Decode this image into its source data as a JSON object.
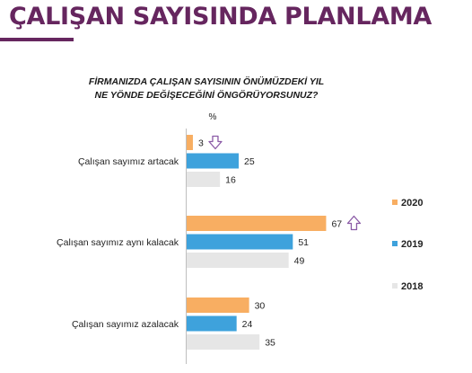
{
  "title": "ÇALIŞAN SAYISINDA PLANLAMA",
  "colors": {
    "title": "#66265f",
    "rule": "#66265f",
    "arrow": "#8a5aa6",
    "2020": "#f8ae62",
    "2019": "#3ea2dc",
    "2018": "#e6e6e6"
  },
  "chart_data": {
    "type": "bar",
    "orientation": "horizontal",
    "title": "FİRMANIZDA ÇALIŞAN SAYISININ ÖNÜMÜZDEKİ YIL NE YÖNDE DEĞİŞECEĞİNİ ÖNGÖRÜYORSUNUZ?",
    "title_lines": [
      "FİRMANIZDA ÇALIŞAN SAYISININ ÖNÜMÜZDEKİ YIL",
      "NE YÖNDE DEĞİŞECEĞİNİ ÖNGÖRÜYORSUNUZ?"
    ],
    "unit_label": "%",
    "categories": [
      "Çalışan sayımız artacak",
      "Çalışan sayımız aynı kalacak",
      "Çalışan sayımız azalacak"
    ],
    "series": [
      {
        "name": "2020",
        "values": [
          3,
          67,
          30
        ]
      },
      {
        "name": "2019",
        "values": [
          25,
          51,
          24
        ]
      },
      {
        "name": "2018",
        "values": [
          16,
          49,
          35
        ]
      }
    ],
    "arrows": [
      {
        "category": "Çalışan sayımız artacak",
        "direction": "down"
      },
      {
        "category": "Çalışan sayımız aynı kalacak",
        "direction": "up"
      }
    ],
    "legend_position": "right",
    "grid": false
  }
}
